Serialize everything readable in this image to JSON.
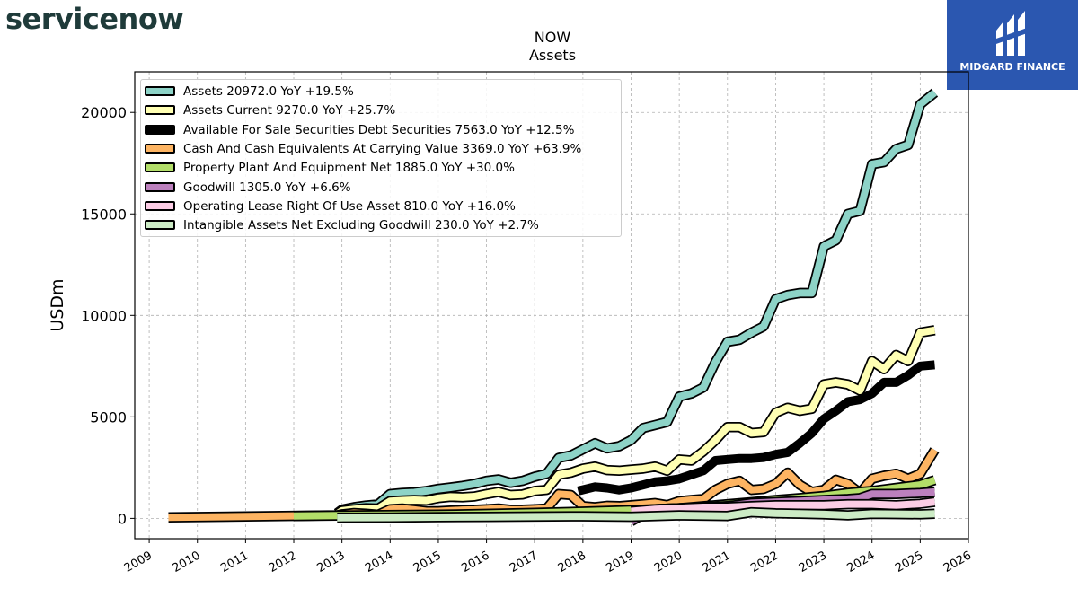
{
  "header": {
    "company_logo": "servicenow",
    "brand": "MIDGARD FINANCE"
  },
  "chart_data": {
    "type": "line",
    "title": "NOW",
    "subtitle": "Assets",
    "ylabel": "USDm",
    "xlabel": "",
    "xlim": [
      2008.7,
      2026.0
    ],
    "ylim": [
      -1000,
      22000
    ],
    "yticks": [
      0,
      5000,
      10000,
      15000,
      20000
    ],
    "xticks": [
      2009,
      2010,
      2011,
      2012,
      2013,
      2014,
      2015,
      2016,
      2017,
      2018,
      2019,
      2020,
      2021,
      2022,
      2023,
      2024,
      2025,
      2026
    ],
    "grid": true,
    "legend_position": "top-left",
    "series": [
      {
        "name": "Assets",
        "legend": "Assets  20972.0 YoY +19.5%",
        "color": "#8dd3c7",
        "width": 8,
        "points": [
          [
            2012.9,
            250
          ],
          [
            2013.0,
            430
          ],
          [
            2013.25,
            550
          ],
          [
            2013.5,
            630
          ],
          [
            2013.75,
            690
          ],
          [
            2014.0,
            1200
          ],
          [
            2014.25,
            1250
          ],
          [
            2014.5,
            1280
          ],
          [
            2014.75,
            1350
          ],
          [
            2015.0,
            1450
          ],
          [
            2015.25,
            1520
          ],
          [
            2015.5,
            1600
          ],
          [
            2015.75,
            1700
          ],
          [
            2016.0,
            1850
          ],
          [
            2016.25,
            1920
          ],
          [
            2016.5,
            1750
          ],
          [
            2016.75,
            1850
          ],
          [
            2017.0,
            2050
          ],
          [
            2017.25,
            2200
          ],
          [
            2017.5,
            2980
          ],
          [
            2017.75,
            3100
          ],
          [
            2018.0,
            3400
          ],
          [
            2018.25,
            3700
          ],
          [
            2018.5,
            3450
          ],
          [
            2018.75,
            3550
          ],
          [
            2019.0,
            3850
          ],
          [
            2019.25,
            4450
          ],
          [
            2019.5,
            4600
          ],
          [
            2019.75,
            4750
          ],
          [
            2020.0,
            6000
          ],
          [
            2020.25,
            6150
          ],
          [
            2020.5,
            6450
          ],
          [
            2020.75,
            7700
          ],
          [
            2021.0,
            8700
          ],
          [
            2021.25,
            8800
          ],
          [
            2021.5,
            9150
          ],
          [
            2021.75,
            9450
          ],
          [
            2022.0,
            10800
          ],
          [
            2022.25,
            11000
          ],
          [
            2022.5,
            11100
          ],
          [
            2022.75,
            11100
          ],
          [
            2023.0,
            13400
          ],
          [
            2023.25,
            13700
          ],
          [
            2023.5,
            15000
          ],
          [
            2023.75,
            15150
          ],
          [
            2024.0,
            17450
          ],
          [
            2024.25,
            17550
          ],
          [
            2024.5,
            18200
          ],
          [
            2024.75,
            18400
          ],
          [
            2025.0,
            20400
          ],
          [
            2025.3,
            20972
          ]
        ]
      },
      {
        "name": "Assets Current",
        "legend": "Assets Current  9270.0 YoY +25.7%",
        "color": "#ffffb3",
        "width": 8,
        "points": [
          [
            2012.9,
            220
          ],
          [
            2013.0,
            380
          ],
          [
            2013.25,
            450
          ],
          [
            2013.5,
            500
          ],
          [
            2013.75,
            480
          ],
          [
            2014.0,
            850
          ],
          [
            2014.25,
            880
          ],
          [
            2014.5,
            900
          ],
          [
            2014.75,
            880
          ],
          [
            2015.0,
            1000
          ],
          [
            2015.25,
            1060
          ],
          [
            2015.5,
            1040
          ],
          [
            2015.75,
            1080
          ],
          [
            2016.0,
            1200
          ],
          [
            2016.25,
            1300
          ],
          [
            2016.5,
            1150
          ],
          [
            2016.75,
            1180
          ],
          [
            2017.0,
            1350
          ],
          [
            2017.25,
            1400
          ],
          [
            2017.5,
            2150
          ],
          [
            2017.75,
            2250
          ],
          [
            2018.0,
            2450
          ],
          [
            2018.25,
            2550
          ],
          [
            2018.5,
            2380
          ],
          [
            2018.75,
            2350
          ],
          [
            2019.0,
            2400
          ],
          [
            2019.25,
            2450
          ],
          [
            2019.5,
            2550
          ],
          [
            2019.75,
            2350
          ],
          [
            2020.0,
            2900
          ],
          [
            2020.25,
            2850
          ],
          [
            2020.5,
            3300
          ],
          [
            2020.75,
            3850
          ],
          [
            2021.0,
            4500
          ],
          [
            2021.25,
            4500
          ],
          [
            2021.5,
            4200
          ],
          [
            2021.75,
            4250
          ],
          [
            2022.0,
            5200
          ],
          [
            2022.25,
            5450
          ],
          [
            2022.5,
            5300
          ],
          [
            2022.75,
            5400
          ],
          [
            2023.0,
            6600
          ],
          [
            2023.25,
            6700
          ],
          [
            2023.5,
            6600
          ],
          [
            2023.75,
            6300
          ],
          [
            2024.0,
            7750
          ],
          [
            2024.25,
            7350
          ],
          [
            2024.5,
            8050
          ],
          [
            2024.75,
            7750
          ],
          [
            2025.0,
            9150
          ],
          [
            2025.3,
            9270
          ]
        ]
      },
      {
        "name": "Available For Sale Securities Debt Securities",
        "legend": "Available For Sale Securities Debt Securities  7563.0 YoY +12.5%",
        "color": "#000000",
        "width": 10,
        "solid": true,
        "points": [
          [
            2017.9,
            1350
          ],
          [
            2018.25,
            1550
          ],
          [
            2018.5,
            1500
          ],
          [
            2018.75,
            1400
          ],
          [
            2019.0,
            1500
          ],
          [
            2019.25,
            1650
          ],
          [
            2019.5,
            1800
          ],
          [
            2019.75,
            1850
          ],
          [
            2020.0,
            1950
          ],
          [
            2020.25,
            2150
          ],
          [
            2020.5,
            2350
          ],
          [
            2020.75,
            2850
          ],
          [
            2021.0,
            2900
          ],
          [
            2021.25,
            2950
          ],
          [
            2021.5,
            2950
          ],
          [
            2021.75,
            3000
          ],
          [
            2022.0,
            3150
          ],
          [
            2022.25,
            3250
          ],
          [
            2022.5,
            3700
          ],
          [
            2022.75,
            4200
          ],
          [
            2023.0,
            4900
          ],
          [
            2023.25,
            5300
          ],
          [
            2023.5,
            5750
          ],
          [
            2023.75,
            5850
          ],
          [
            2024.0,
            6150
          ],
          [
            2024.25,
            6700
          ],
          [
            2024.5,
            6700
          ],
          [
            2024.75,
            7050
          ],
          [
            2025.0,
            7500
          ],
          [
            2025.3,
            7563
          ]
        ]
      },
      {
        "name": "Cash And Cash Equivalents At Carrying Value",
        "legend": "Cash And Cash Equivalents At Carrying Value  3369.0 YoY +63.9%",
        "color": "#fdb462",
        "width": 8,
        "points": [
          [
            2009.4,
            50
          ],
          [
            2012.9,
            150
          ],
          [
            2013.0,
            200
          ],
          [
            2013.25,
            260
          ],
          [
            2013.5,
            230
          ],
          [
            2013.75,
            180
          ],
          [
            2014.0,
            450
          ],
          [
            2014.25,
            480
          ],
          [
            2014.5,
            420
          ],
          [
            2014.75,
            350
          ],
          [
            2015.0,
            350
          ],
          [
            2015.25,
            380
          ],
          [
            2015.5,
            410
          ],
          [
            2015.75,
            420
          ],
          [
            2016.0,
            450
          ],
          [
            2016.25,
            480
          ],
          [
            2016.5,
            420
          ],
          [
            2016.75,
            430
          ],
          [
            2017.0,
            450
          ],
          [
            2017.25,
            480
          ],
          [
            2017.5,
            1200
          ],
          [
            2017.75,
            1150
          ],
          [
            2018.0,
            600
          ],
          [
            2018.25,
            550
          ],
          [
            2018.5,
            620
          ],
          [
            2018.75,
            600
          ],
          [
            2019.0,
            650
          ],
          [
            2019.25,
            700
          ],
          [
            2019.5,
            750
          ],
          [
            2019.75,
            650
          ],
          [
            2020.0,
            850
          ],
          [
            2020.25,
            900
          ],
          [
            2020.5,
            950
          ],
          [
            2020.75,
            1400
          ],
          [
            2021.0,
            1700
          ],
          [
            2021.25,
            1850
          ],
          [
            2021.5,
            1400
          ],
          [
            2021.75,
            1450
          ],
          [
            2022.0,
            1700
          ],
          [
            2022.25,
            2250
          ],
          [
            2022.5,
            1650
          ],
          [
            2022.75,
            1300
          ],
          [
            2023.0,
            1400
          ],
          [
            2023.25,
            1900
          ],
          [
            2023.5,
            1700
          ],
          [
            2023.75,
            1250
          ],
          [
            2024.0,
            1950
          ],
          [
            2024.25,
            2100
          ],
          [
            2024.5,
            2200
          ],
          [
            2024.75,
            1950
          ],
          [
            2025.0,
            2200
          ],
          [
            2025.3,
            3369
          ]
        ]
      },
      {
        "name": "Property Plant And Equipment Net",
        "legend": "Property Plant And Equipment Net  1885.0 YoY +30.0%",
        "color": "#b3de69",
        "width": 8,
        "points": [
          [
            2012.0,
            120
          ],
          [
            2012.9,
            140
          ],
          [
            2015.0,
            180
          ],
          [
            2016.0,
            220
          ],
          [
            2017.0,
            270
          ],
          [
            2018.0,
            330
          ],
          [
            2019.0,
            400
          ],
          [
            2020.0,
            500
          ],
          [
            2020.5,
            600
          ],
          [
            2021.0,
            700
          ],
          [
            2021.5,
            800
          ],
          [
            2022.0,
            900
          ],
          [
            2022.5,
            1000
          ],
          [
            2023.0,
            1100
          ],
          [
            2023.5,
            1250
          ],
          [
            2024.0,
            1350
          ],
          [
            2024.5,
            1500
          ],
          [
            2025.0,
            1650
          ],
          [
            2025.3,
            1885
          ]
        ]
      },
      {
        "name": "Goodwill",
        "legend": "Goodwill  1305.0 YoY +6.6%",
        "color": "#bc80bd",
        "width": 8,
        "points": [
          [
            2019.0,
            -150
          ],
          [
            2019.25,
            200
          ],
          [
            2019.5,
            450
          ],
          [
            2020.0,
            500
          ],
          [
            2020.5,
            550
          ],
          [
            2021.0,
            600
          ],
          [
            2021.5,
            750
          ],
          [
            2022.0,
            800
          ],
          [
            2022.5,
            850
          ],
          [
            2023.0,
            900
          ],
          [
            2023.5,
            950
          ],
          [
            2023.75,
            1000
          ],
          [
            2024.0,
            1200
          ],
          [
            2024.5,
            1200
          ],
          [
            2025.0,
            1250
          ],
          [
            2025.3,
            1305
          ]
        ]
      },
      {
        "name": "Operating Lease Right Of Use Asset",
        "legend": "Operating Lease Right Of Use Asset  810.0 YoY +16.0%",
        "color": "#fccde5",
        "width": 8,
        "points": [
          [
            2019.0,
            350
          ],
          [
            2019.5,
            450
          ],
          [
            2020.0,
            500
          ],
          [
            2020.5,
            550
          ],
          [
            2021.0,
            550
          ],
          [
            2021.5,
            600
          ],
          [
            2022.0,
            650
          ],
          [
            2022.5,
            650
          ],
          [
            2023.0,
            650
          ],
          [
            2023.5,
            700
          ],
          [
            2024.0,
            700
          ],
          [
            2024.5,
            650
          ],
          [
            2025.0,
            720
          ],
          [
            2025.3,
            810
          ]
        ]
      },
      {
        "name": "Intangible Assets Net Excluding Goodwill",
        "legend": "Intangible Assets Net Excluding Goodwill  230.0 YoY +2.7%",
        "color": "#ccebc5",
        "width": 8,
        "points": [
          [
            2012.9,
            30
          ],
          [
            2014.0,
            40
          ],
          [
            2015.0,
            60
          ],
          [
            2016.0,
            70
          ],
          [
            2017.0,
            90
          ],
          [
            2018.0,
            100
          ],
          [
            2019.0,
            80
          ],
          [
            2020.0,
            150
          ],
          [
            2021.0,
            120
          ],
          [
            2021.5,
            300
          ],
          [
            2022.0,
            250
          ],
          [
            2022.5,
            230
          ],
          [
            2023.0,
            200
          ],
          [
            2023.5,
            150
          ],
          [
            2024.0,
            220
          ],
          [
            2024.5,
            210
          ],
          [
            2025.0,
            200
          ],
          [
            2025.3,
            230
          ]
        ]
      }
    ]
  }
}
